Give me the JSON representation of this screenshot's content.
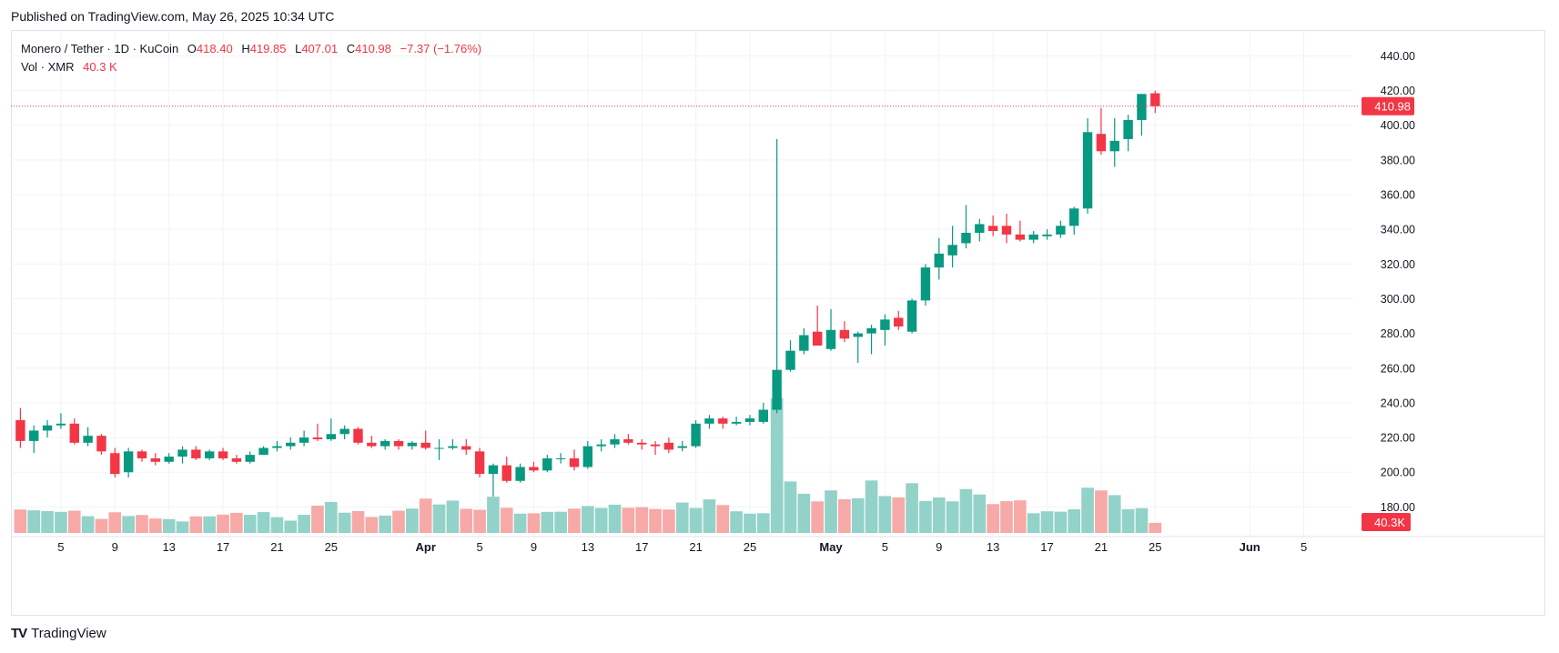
{
  "published": "Published on TradingView.com, May 26, 2025 10:34 UTC",
  "legend": {
    "symbol": "Monero / Tether · 1D · KuCoin",
    "o_label": "O",
    "o_value": "418.40",
    "h_label": "H",
    "h_value": "419.85",
    "l_label": "L",
    "l_value": "407.01",
    "c_label": "C",
    "c_value": "410.98",
    "change": "−7.37 (−1.76%)",
    "vol_label": "Vol · XMR",
    "vol_value": "40.3 K"
  },
  "footer": {
    "brand": "TradingView",
    "logo": "TV"
  },
  "colors": {
    "up": "#089981",
    "down": "#f23645",
    "up_vol": "#92d2c9",
    "down_vol": "#f7a9a7",
    "grid": "#f0f3fa",
    "axis_text": "#131722"
  },
  "price_label": "410.98",
  "volume_label": "40.3K",
  "chart_data": {
    "type": "candlestick",
    "symbol": "XMR/USDT",
    "y_ticks": [
      "440.00",
      "420.00",
      "400.00",
      "380.00",
      "360.00",
      "340.00",
      "320.00",
      "300.00",
      "280.00",
      "260.00",
      "240.00",
      "220.00",
      "200.00",
      "180.00"
    ],
    "y_range": [
      165,
      447
    ],
    "x_ticks": [
      {
        "label": "5",
        "day": 4
      },
      {
        "label": "9",
        "day": 8
      },
      {
        "label": "13",
        "day": 12
      },
      {
        "label": "17",
        "day": 16
      },
      {
        "label": "21",
        "day": 20
      },
      {
        "label": "25",
        "day": 24
      },
      {
        "label": "Apr",
        "day": 31
      },
      {
        "label": "5",
        "day": 35
      },
      {
        "label": "9",
        "day": 39
      },
      {
        "label": "13",
        "day": 43
      },
      {
        "label": "17",
        "day": 47
      },
      {
        "label": "21",
        "day": 51
      },
      {
        "label": "25",
        "day": 55
      },
      {
        "label": "May",
        "day": 61
      },
      {
        "label": "5",
        "day": 65
      },
      {
        "label": "9",
        "day": 69
      },
      {
        "label": "13",
        "day": 73
      },
      {
        "label": "17",
        "day": 77
      },
      {
        "label": "21",
        "day": 81
      },
      {
        "label": "25",
        "day": 85
      },
      {
        "label": "Jun",
        "day": 92
      },
      {
        "label": "5",
        "day": 96
      }
    ],
    "x_range": [
      0.3,
      99.6
    ],
    "last_price": 410.98,
    "candles": [
      {
        "day": 1,
        "o": 230,
        "h": 237,
        "l": 214,
        "c": 218,
        "v": 12
      },
      {
        "day": 2,
        "o": 218,
        "h": 227,
        "l": 211,
        "c": 224,
        "v": 11.6
      },
      {
        "day": 3,
        "o": 224,
        "h": 230,
        "l": 220,
        "c": 227,
        "v": 11.2
      },
      {
        "day": 4,
        "o": 227,
        "h": 234,
        "l": 225,
        "c": 228,
        "v": 10.8
      },
      {
        "day": 5,
        "o": 228,
        "h": 231,
        "l": 216,
        "c": 217,
        "v": 11.4
      },
      {
        "day": 6,
        "o": 217,
        "h": 226,
        "l": 215,
        "c": 221,
        "v": 8.6
      },
      {
        "day": 7,
        "o": 221,
        "h": 222,
        "l": 210,
        "c": 212,
        "v": 7.2
      },
      {
        "day": 8,
        "o": 211,
        "h": 214,
        "l": 197,
        "c": 199,
        "v": 10.6
      },
      {
        "day": 9,
        "o": 200,
        "h": 214,
        "l": 197,
        "c": 212,
        "v": 8.7
      },
      {
        "day": 10,
        "o": 212,
        "h": 213,
        "l": 206,
        "c": 208,
        "v": 9.2
      },
      {
        "day": 11,
        "o": 208,
        "h": 211,
        "l": 204,
        "c": 206,
        "v": 7.4
      },
      {
        "day": 12,
        "o": 206,
        "h": 211,
        "l": 205,
        "c": 209,
        "v": 7.1
      },
      {
        "day": 13,
        "o": 209,
        "h": 215,
        "l": 205,
        "c": 213,
        "v": 5.9
      },
      {
        "day": 14,
        "o": 213,
        "h": 215,
        "l": 207,
        "c": 208,
        "v": 8.5
      },
      {
        "day": 15,
        "o": 208,
        "h": 213,
        "l": 207,
        "c": 212,
        "v": 8.5
      },
      {
        "day": 16,
        "o": 212,
        "h": 214,
        "l": 207,
        "c": 208,
        "v": 9.4
      },
      {
        "day": 17,
        "o": 208,
        "h": 210,
        "l": 205,
        "c": 206,
        "v": 10.3
      },
      {
        "day": 18,
        "o": 206,
        "h": 212,
        "l": 205,
        "c": 210,
        "v": 9.3
      },
      {
        "day": 19,
        "o": 210,
        "h": 215,
        "l": 210,
        "c": 214,
        "v": 10.7
      },
      {
        "day": 20,
        "o": 214,
        "h": 218,
        "l": 212,
        "c": 215,
        "v": 8.1
      },
      {
        "day": 21,
        "o": 215,
        "h": 220,
        "l": 213,
        "c": 217,
        "v": 6.3
      },
      {
        "day": 22,
        "o": 217,
        "h": 224,
        "l": 215,
        "c": 220,
        "v": 9.3
      },
      {
        "day": 23,
        "o": 220,
        "h": 228,
        "l": 218,
        "c": 219,
        "v": 14
      },
      {
        "day": 24,
        "o": 219,
        "h": 231,
        "l": 218,
        "c": 222,
        "v": 15.9
      },
      {
        "day": 25,
        "o": 222,
        "h": 227,
        "l": 219,
        "c": 225,
        "v": 10.4
      },
      {
        "day": 26,
        "o": 225,
        "h": 226,
        "l": 216,
        "c": 217,
        "v": 11.2
      },
      {
        "day": 27,
        "o": 217,
        "h": 221,
        "l": 214,
        "c": 215,
        "v": 8.2
      },
      {
        "day": 28,
        "o": 215,
        "h": 219,
        "l": 213,
        "c": 218,
        "v": 8.9
      },
      {
        "day": 29,
        "o": 218,
        "h": 219,
        "l": 213,
        "c": 215,
        "v": 11.4
      },
      {
        "day": 30,
        "o": 215,
        "h": 218,
        "l": 213,
        "c": 217,
        "v": 12.5
      },
      {
        "day": 31,
        "o": 217,
        "h": 224,
        "l": 213,
        "c": 214,
        "v": 17.6
      },
      {
        "day": 32,
        "o": 214,
        "h": 219,
        "l": 207,
        "c": 214,
        "v": 14.6
      },
      {
        "day": 33,
        "o": 214,
        "h": 219,
        "l": 213,
        "c": 215,
        "v": 16.6
      },
      {
        "day": 34,
        "o": 215,
        "h": 219,
        "l": 210,
        "c": 213,
        "v": 12.4
      },
      {
        "day": 35,
        "o": 212,
        "h": 214,
        "l": 197,
        "c": 199,
        "v": 11.9
      },
      {
        "day": 36,
        "o": 199,
        "h": 205,
        "l": 186,
        "c": 204,
        "v": 18.6
      },
      {
        "day": 37,
        "o": 204,
        "h": 209,
        "l": 194,
        "c": 195,
        "v": 12.9
      },
      {
        "day": 38,
        "o": 195,
        "h": 205,
        "l": 194,
        "c": 203,
        "v": 9.9
      },
      {
        "day": 39,
        "o": 203,
        "h": 206,
        "l": 200,
        "c": 201,
        "v": 10.1
      },
      {
        "day": 40,
        "o": 201,
        "h": 210,
        "l": 200,
        "c": 208,
        "v": 10.8
      },
      {
        "day": 41,
        "o": 208,
        "h": 211,
        "l": 205,
        "c": 208,
        "v": 10.9
      },
      {
        "day": 42,
        "o": 208,
        "h": 213,
        "l": 201,
        "c": 203,
        "v": 12.5
      },
      {
        "day": 43,
        "o": 203,
        "h": 218,
        "l": 202,
        "c": 215,
        "v": 13.8
      },
      {
        "day": 44,
        "o": 215,
        "h": 219,
        "l": 212,
        "c": 216,
        "v": 12.8
      },
      {
        "day": 45,
        "o": 216,
        "h": 222,
        "l": 214,
        "c": 219,
        "v": 14.5
      },
      {
        "day": 46,
        "o": 219,
        "h": 222,
        "l": 216,
        "c": 217,
        "v": 12.9
      },
      {
        "day": 47,
        "o": 217,
        "h": 219,
        "l": 213,
        "c": 216,
        "v": 13.2
      },
      {
        "day": 48,
        "o": 216,
        "h": 218,
        "l": 210,
        "c": 215,
        "v": 12.3
      },
      {
        "day": 49,
        "o": 217,
        "h": 220,
        "l": 211,
        "c": 213,
        "v": 12
      },
      {
        "day": 50,
        "o": 214,
        "h": 218,
        "l": 212,
        "c": 215,
        "v": 15.6
      },
      {
        "day": 51,
        "o": 215,
        "h": 230,
        "l": 214,
        "c": 228,
        "v": 12.8
      },
      {
        "day": 52,
        "o": 228,
        "h": 233,
        "l": 225,
        "c": 231,
        "v": 17.2
      },
      {
        "day": 53,
        "o": 231,
        "h": 232,
        "l": 225,
        "c": 228,
        "v": 14.3
      },
      {
        "day": 54,
        "o": 228,
        "h": 232,
        "l": 227,
        "c": 229,
        "v": 11.1
      },
      {
        "day": 55,
        "o": 229,
        "h": 233,
        "l": 227,
        "c": 231,
        "v": 9.9
      },
      {
        "day": 56,
        "o": 229,
        "h": 240,
        "l": 228,
        "c": 236,
        "v": 10.1
      },
      {
        "day": 57,
        "o": 236,
        "h": 392,
        "l": 234,
        "c": 259,
        "v": 69
      },
      {
        "day": 58,
        "o": 259,
        "h": 276,
        "l": 258,
        "c": 270,
        "v": 26.4
      },
      {
        "day": 59,
        "o": 270,
        "h": 283,
        "l": 268,
        "c": 279,
        "v": 20.1
      },
      {
        "day": 60,
        "o": 281,
        "h": 296,
        "l": 273,
        "c": 273,
        "v": 16.2
      },
      {
        "day": 61,
        "o": 271,
        "h": 294,
        "l": 270,
        "c": 282,
        "v": 21.8
      },
      {
        "day": 62,
        "o": 282,
        "h": 287,
        "l": 275,
        "c": 277,
        "v": 17.3
      },
      {
        "day": 63,
        "o": 278,
        "h": 281,
        "l": 263,
        "c": 280,
        "v": 17.8
      },
      {
        "day": 64,
        "o": 280,
        "h": 285,
        "l": 268,
        "c": 283,
        "v": 26.9
      },
      {
        "day": 65,
        "o": 282,
        "h": 291,
        "l": 273,
        "c": 288,
        "v": 18.9
      },
      {
        "day": 66,
        "o": 289,
        "h": 293,
        "l": 282,
        "c": 284,
        "v": 18.2
      },
      {
        "day": 67,
        "o": 281,
        "h": 300,
        "l": 280,
        "c": 299,
        "v": 25.5
      },
      {
        "day": 68,
        "o": 299,
        "h": 320,
        "l": 296,
        "c": 318,
        "v": 16.4
      },
      {
        "day": 69,
        "o": 318,
        "h": 335,
        "l": 311,
        "c": 326,
        "v": 18.2
      },
      {
        "day": 70,
        "o": 325,
        "h": 342,
        "l": 318,
        "c": 331,
        "v": 16.2
      },
      {
        "day": 71,
        "o": 332,
        "h": 354,
        "l": 329,
        "c": 338,
        "v": 22.5
      },
      {
        "day": 72,
        "o": 338,
        "h": 346,
        "l": 333,
        "c": 343,
        "v": 19.7
      },
      {
        "day": 73,
        "o": 342,
        "h": 348,
        "l": 336,
        "c": 339,
        "v": 14.8
      },
      {
        "day": 74,
        "o": 342,
        "h": 349,
        "l": 332,
        "c": 337,
        "v": 16.3
      },
      {
        "day": 75,
        "o": 337,
        "h": 345,
        "l": 333,
        "c": 334,
        "v": 16.7
      },
      {
        "day": 76,
        "o": 334,
        "h": 339,
        "l": 332,
        "c": 337,
        "v": 10.1
      },
      {
        "day": 77,
        "o": 336,
        "h": 340,
        "l": 334,
        "c": 337,
        "v": 11.1
      },
      {
        "day": 78,
        "o": 337,
        "h": 345,
        "l": 335,
        "c": 342,
        "v": 10.9
      },
      {
        "day": 79,
        "o": 342,
        "h": 353,
        "l": 337,
        "c": 352,
        "v": 12.1
      },
      {
        "day": 80,
        "o": 352,
        "h": 404,
        "l": 349,
        "c": 396,
        "v": 23.2
      },
      {
        "day": 81,
        "o": 395,
        "h": 410,
        "l": 383,
        "c": 385,
        "v": 21.8
      },
      {
        "day": 82,
        "o": 385,
        "h": 404,
        "l": 376,
        "c": 391,
        "v": 19.4
      },
      {
        "day": 83,
        "o": 392,
        "h": 406,
        "l": 385,
        "c": 403,
        "v": 12.2
      },
      {
        "day": 84,
        "o": 403,
        "h": 418,
        "l": 394,
        "c": 418,
        "v": 12.7
      },
      {
        "day": 85,
        "o": 418.4,
        "h": 419.85,
        "l": 407.01,
        "c": 410.98,
        "v": 5.2
      }
    ]
  }
}
